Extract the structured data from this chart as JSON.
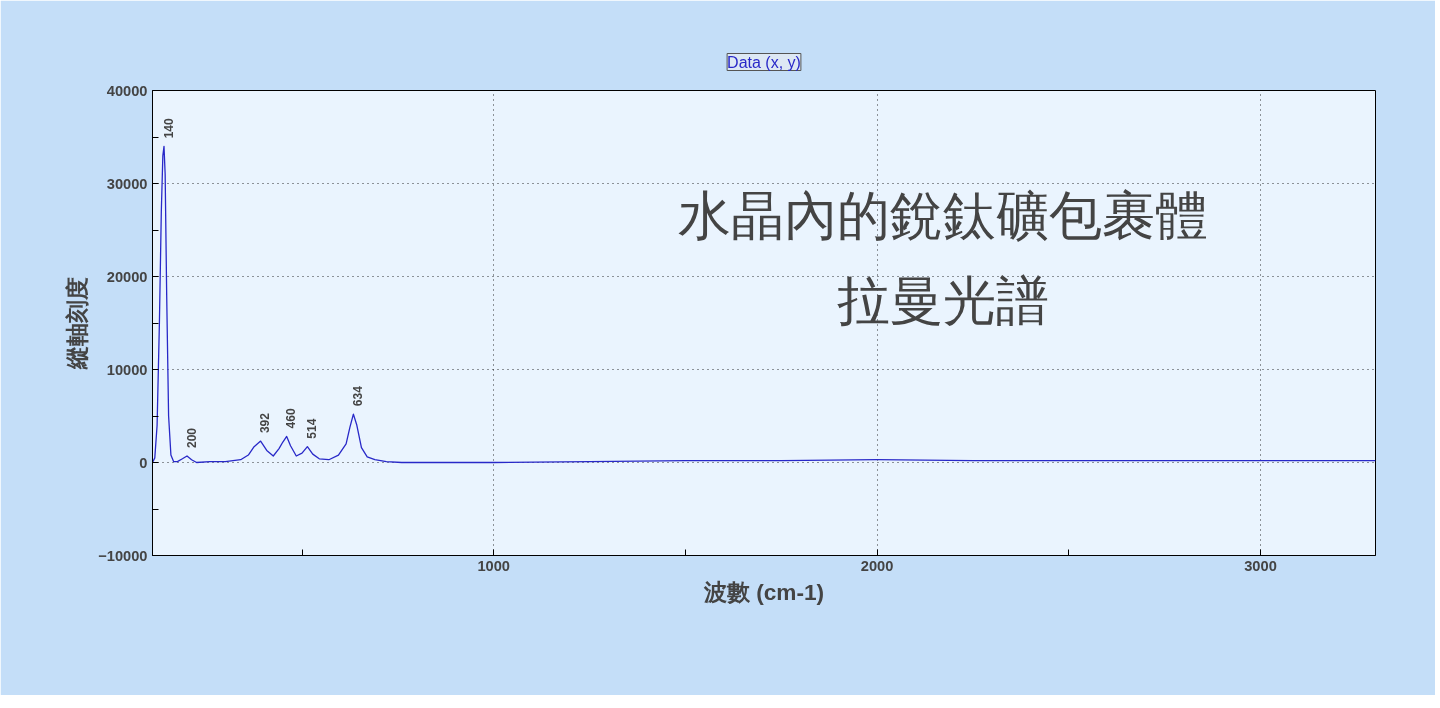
{
  "chart_data": {
    "type": "line",
    "title": "水晶內的銳鈦礦包裹體",
    "subtitle": "拉曼光譜",
    "xlabel": "波數 (cm-1)",
    "ylabel": "縱軸刻度",
    "x": [
      110,
      116,
      122,
      128,
      133,
      137,
      140,
      143,
      147,
      152,
      158,
      165,
      175,
      188,
      200,
      212,
      225,
      260,
      300,
      340,
      360,
      375,
      392,
      408,
      425,
      440,
      450,
      460,
      470,
      485,
      500,
      514,
      528,
      545,
      570,
      595,
      615,
      625,
      634,
      643,
      655,
      670,
      690,
      720,
      760,
      850,
      1000,
      1250,
      1500,
      1750,
      2000,
      2250,
      2500,
      2750,
      3000,
      3150,
      3300
    ],
    "series": [
      {
        "name": "Data (x, y)",
        "color": "#2828c8",
        "values": [
          0,
          500,
          4000,
          15000,
          27000,
          33000,
          34000,
          31000,
          18000,
          5000,
          800,
          100,
          100,
          400,
          700,
          300,
          0,
          100,
          100,
          300,
          800,
          1700,
          2300,
          1300,
          700,
          1500,
          2200,
          2800,
          1800,
          700,
          1000,
          1700,
          900,
          400,
          300,
          800,
          2000,
          3800,
          5200,
          4000,
          1600,
          600,
          300,
          100,
          0,
          0,
          0,
          100,
          200,
          200,
          300,
          200,
          200,
          200,
          200,
          200,
          200
        ]
      }
    ],
    "xlim": [
      110,
      3300
    ],
    "xticks": [
      {
        "value": 500,
        "label": null
      },
      1000,
      {
        "value": 1500,
        "label": null
      },
      2000,
      {
        "value": 2500,
        "label": null
      },
      3000
    ],
    "ylim": [
      -10000,
      40000
    ],
    "yticks": [
      -10000,
      {
        "value": -5000,
        "label": null
      },
      0,
      {
        "value": 5000,
        "label": null
      },
      10000,
      {
        "value": 15000,
        "label": null
      },
      20000,
      {
        "value": 25000,
        "label": null
      },
      30000,
      {
        "value": 35000,
        "label": null
      },
      40000
    ],
    "grid": true,
    "marker": "none",
    "line_style": "solid",
    "annotations": [
      {
        "text": "140",
        "x": 140,
        "y": 34000
      },
      {
        "text": "200",
        "x": 200,
        "y": 700
      },
      {
        "text": "392",
        "x": 392,
        "y": 2300
      },
      {
        "text": "460",
        "x": 460,
        "y": 2800
      },
      {
        "text": "514",
        "x": 514,
        "y": 1700
      },
      {
        "text": "634",
        "x": 634,
        "y": 5200
      }
    ]
  }
}
